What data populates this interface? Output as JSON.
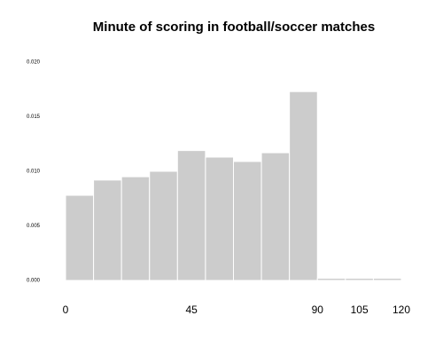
{
  "chart_data": {
    "type": "histogram",
    "title": "Minute of scoring in football/soccer matches",
    "bins": [
      0,
      10,
      20,
      30,
      40,
      50,
      60,
      70,
      80,
      90,
      100,
      110,
      120
    ],
    "values": [
      0.0078,
      0.0092,
      0.0095,
      0.01,
      0.0119,
      0.0113,
      0.0109,
      0.0117,
      0.0173,
      0.0002,
      0.0002,
      0.0002
    ],
    "color": "#cccccc",
    "xlim": [
      0,
      120
    ],
    "xticks": [
      0,
      45,
      90,
      105,
      120
    ],
    "ylim": [
      0,
      0.02
    ],
    "yticks": [
      {
        "value": 0,
        "label": "0.000"
      },
      {
        "value": 0.005,
        "label": "0.005"
      },
      {
        "value": 0.01,
        "label": "0.010"
      },
      {
        "value": 0.015,
        "label": "0.015"
      },
      {
        "value": 0.02,
        "label": "0.020"
      }
    ],
    "grid": false
  }
}
